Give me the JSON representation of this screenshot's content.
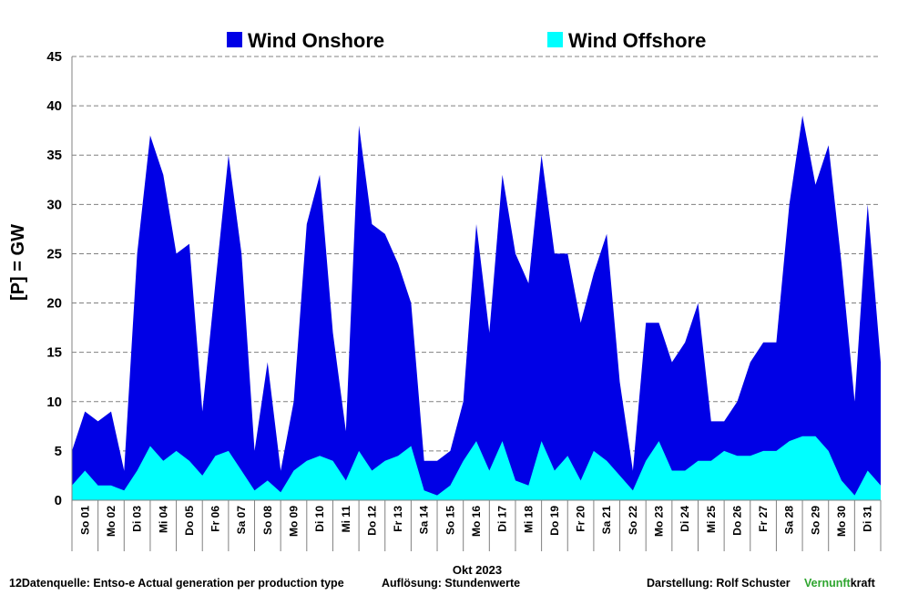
{
  "chart_data": {
    "type": "area",
    "title": "",
    "ylabel": "[P]  = GW",
    "xlabel": "Okt 2023",
    "ylim": [
      0,
      45
    ],
    "yticks": [
      0,
      5,
      10,
      15,
      20,
      25,
      30,
      35,
      40,
      45
    ],
    "grid": "horizontal dashed",
    "legend_position": "top",
    "categories": [
      "So 01",
      "Mo 02",
      "Di 03",
      "Mi 04",
      "Do 05",
      "Fr 06",
      "Sa 07",
      "So 08",
      "Mo 09",
      "Di 10",
      "Mi 11",
      "Do 12",
      "Fr 13",
      "Sa 14",
      "So 15",
      "Mo 16",
      "Di 17",
      "Mi 18",
      "Do 19",
      "Fr 20",
      "Sa 21",
      "So 22",
      "Mo 23",
      "Di 24",
      "Mi 25",
      "Do 26",
      "Fr 27",
      "Sa 28",
      "So 29",
      "Mo 30",
      "Di 31"
    ],
    "x": [
      0,
      0.5,
      1,
      1.5,
      2,
      2.5,
      3,
      3.5,
      4,
      4.5,
      5,
      5.5,
      6,
      6.5,
      7,
      7.5,
      8,
      8.5,
      9,
      9.5,
      10,
      10.5,
      11,
      11.5,
      12,
      12.5,
      13,
      13.5,
      14,
      14.5,
      15,
      15.5,
      16,
      16.5,
      17,
      17.5,
      18,
      18.5,
      19,
      19.5,
      20,
      20.5,
      21,
      21.5,
      22,
      22.5,
      23,
      23.5,
      24,
      24.5,
      25,
      25.5,
      26,
      26.5,
      27,
      27.5,
      28,
      28.5,
      29,
      29.5,
      30,
      30.5,
      31
    ],
    "series": [
      {
        "name": "Wind Onshore",
        "color": "#0000e6",
        "stacked_total": [
          5,
          9,
          8,
          9,
          3,
          25,
          37,
          33,
          25,
          26,
          9,
          22,
          35,
          25,
          5,
          14,
          3,
          10,
          28,
          33,
          17,
          7,
          38,
          28,
          27,
          24,
          20,
          4,
          4,
          5,
          10,
          28,
          17,
          33,
          25,
          22,
          35,
          25,
          25,
          18,
          23,
          27,
          12,
          3,
          18,
          18,
          14,
          16,
          20,
          8,
          8,
          10,
          14,
          16,
          16,
          30,
          39,
          32,
          36,
          24,
          10,
          30,
          14
        ]
      },
      {
        "name": "Wind Offshore",
        "color": "#00ffff",
        "values": [
          1.5,
          3,
          1.5,
          1.5,
          1,
          3,
          5.5,
          4,
          5,
          4,
          2.5,
          4.5,
          5,
          3,
          1,
          2,
          0.8,
          3,
          4,
          4.5,
          4,
          2,
          5,
          3,
          4,
          4.5,
          5.5,
          1,
          0.5,
          1.5,
          4,
          6,
          3,
          6,
          2,
          1.5,
          6,
          3,
          4.5,
          2,
          5,
          4,
          2.5,
          1,
          4,
          6,
          3,
          3,
          4,
          4,
          5,
          4.5,
          4.5,
          5,
          5,
          6,
          6.5,
          6.5,
          5,
          2,
          0.5,
          3,
          1.5
        ]
      }
    ]
  },
  "footer": {
    "source": "12Datenquelle: Entso-e  Actual generation per production type",
    "resolution": "Auflösung: Stundenwerte",
    "author": "Darstellung:  Rolf Schuster",
    "brand_green": "Vernunft",
    "brand_black": "kraft"
  }
}
